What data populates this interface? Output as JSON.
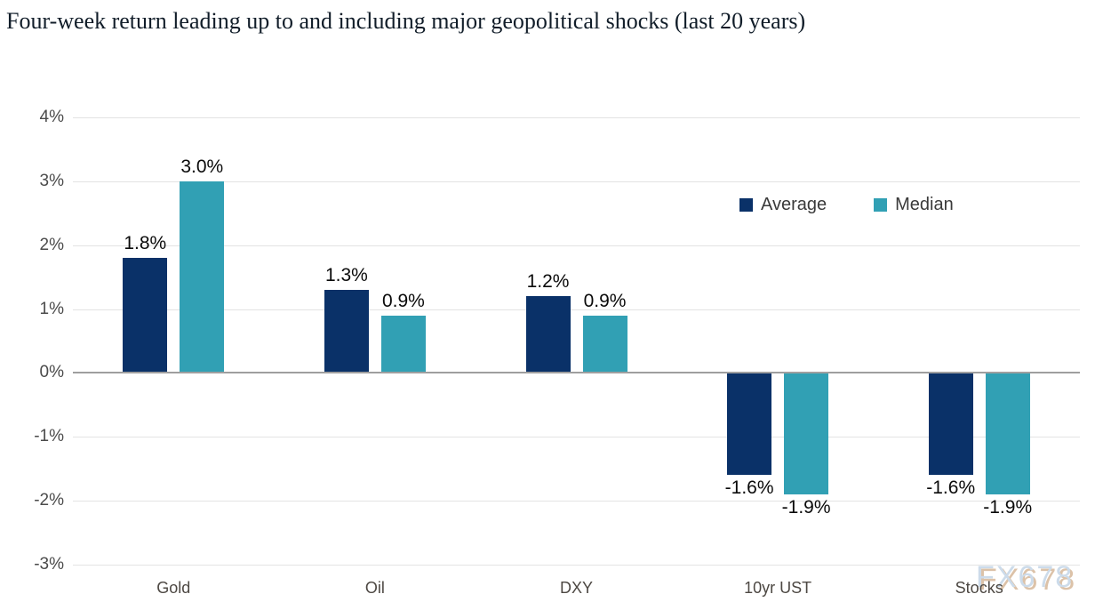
{
  "title": "Four-week return leading up to and including major geopolitical shocks (last 20 years)",
  "watermark": "FX678",
  "legend": {
    "items": [
      {
        "label": "Average",
        "color": "#0a3168"
      },
      {
        "label": "Median",
        "color": "#31a0b4"
      }
    ]
  },
  "chart_data": {
    "type": "bar",
    "title": "Four-week return leading up to and including major geopolitical shocks (last 20 years)",
    "categories": [
      "Gold",
      "Oil",
      "DXY",
      "10yr UST",
      "Stocks"
    ],
    "series": [
      {
        "name": "Average",
        "color": "#0a3168",
        "values": [
          1.8,
          1.3,
          1.2,
          -1.6,
          -1.6
        ]
      },
      {
        "name": "Median",
        "color": "#31a0b4",
        "values": [
          3.0,
          0.9,
          0.9,
          -1.9,
          -1.9
        ]
      }
    ],
    "data_labels": [
      [
        "1.8%",
        "1.3%",
        "1.2%",
        "-1.6%",
        "-1.6%"
      ],
      [
        "3.0%",
        "0.9%",
        "0.9%",
        "-1.9%",
        "-1.9%"
      ]
    ],
    "xlabel": "",
    "ylabel": "",
    "ylim": [
      -3,
      4
    ],
    "ytick_labels": [
      "4%",
      "3%",
      "2%",
      "1%",
      "0%",
      "-1%",
      "-2%",
      "-3%"
    ],
    "ytick_values": [
      4,
      3,
      2,
      1,
      0,
      -1,
      -2,
      -3
    ],
    "grid": true,
    "legend_position": "inside-top-right"
  }
}
